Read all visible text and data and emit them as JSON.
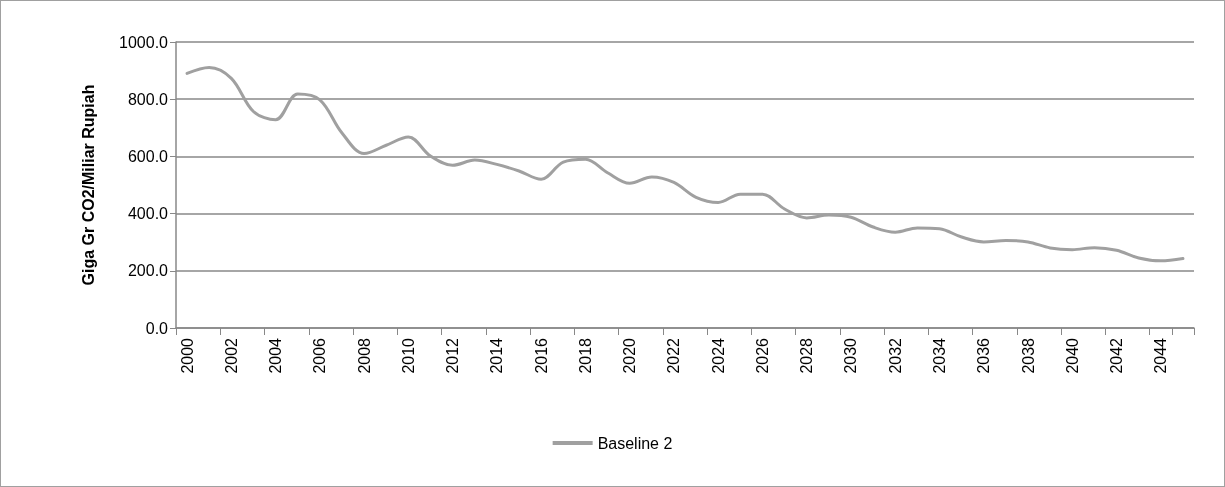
{
  "chart_data": {
    "type": "line",
    "ylabel": "Giga Gr CO2/Miliar Rupiah",
    "categories": [
      "2000",
      null,
      "2002",
      null,
      "2004",
      null,
      "2006",
      null,
      "2008",
      null,
      "2010",
      null,
      "2012",
      null,
      "2014",
      null,
      "2016",
      null,
      "2018",
      null,
      "2020",
      null,
      "2022",
      null,
      "2024",
      null,
      "2026",
      null,
      "2028",
      null,
      "2030",
      null,
      "2032",
      null,
      "2034",
      null,
      "2036",
      null,
      "2038",
      null,
      "2040",
      null,
      "2042",
      null,
      "2044",
      null
    ],
    "series": [
      {
        "name": "Baseline 2",
        "color": "#a0a0a0",
        "values": [
          890,
          911,
          873,
          757,
          728,
          818,
          798,
          682,
          610,
          639,
          668,
          601,
          569,
          587,
          572,
          549,
          520,
          580,
          590,
          543,
          506,
          528,
          509,
          457,
          439,
          468,
          468,
          416,
          385,
          395,
          387,
          353,
          335,
          350,
          347,
          318,
          301,
          306,
          301,
          280,
          274,
          281,
          272,
          245,
          235,
          243
        ]
      }
    ],
    "ylim": [
      0,
      1000
    ],
    "yticks": [
      {
        "value": 0,
        "label": "0.0"
      },
      {
        "value": 200,
        "label": "200.0"
      },
      {
        "value": 400,
        "label": "400.0"
      },
      {
        "value": 600,
        "label": "600.0"
      },
      {
        "value": 800,
        "label": "800.0"
      },
      {
        "value": 1000,
        "label": "1000.0"
      }
    ],
    "grid": "y",
    "legend": "bottom",
    "marker": "none",
    "line_style": "solid"
  }
}
